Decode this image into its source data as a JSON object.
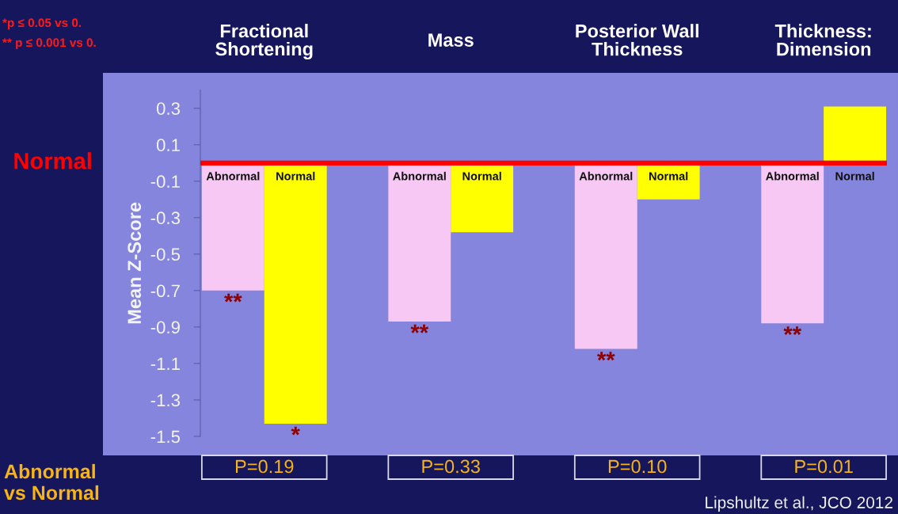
{
  "chart_data": {
    "type": "bar",
    "categories": [
      "Fractional\nShortening",
      "Mass",
      "Posterior Wall\nThickness",
      "Thickness:\nDimension"
    ],
    "series": [
      {
        "name": "Abnormal",
        "color": "#f8c8f4",
        "values": [
          -0.7,
          -0.87,
          -1.02,
          -0.88
        ],
        "value_labels": [
          "**",
          "**",
          "**",
          "**"
        ]
      },
      {
        "name": "Normal",
        "color": "#ffff00",
        "values": [
          -1.43,
          -0.38,
          -0.2,
          0.31
        ],
        "value_labels": [
          "*",
          null,
          null,
          null
        ]
      }
    ],
    "ylabel": "Mean Z-Score",
    "ylim": [
      -1.5,
      0.4
    ],
    "yticks": [
      0.3,
      0.1,
      -0.1,
      -0.3,
      -0.5,
      -0.7,
      -0.9,
      -1.1,
      -1.3,
      -1.5
    ],
    "ref_lines": [
      {
        "axis": "y",
        "value": 0,
        "label": "Normal",
        "color": "#ff0000"
      }
    ],
    "annotations": [
      "*p ≤ 0.05 vs 0.",
      "** p ≤ 0.001 vs 0.",
      "Abnormal\nvs Normal",
      "P=0.19",
      "P=0.33",
      "P=0.10",
      "P=0.01",
      "Lipshultz et al., JCO 2012"
    ]
  }
}
